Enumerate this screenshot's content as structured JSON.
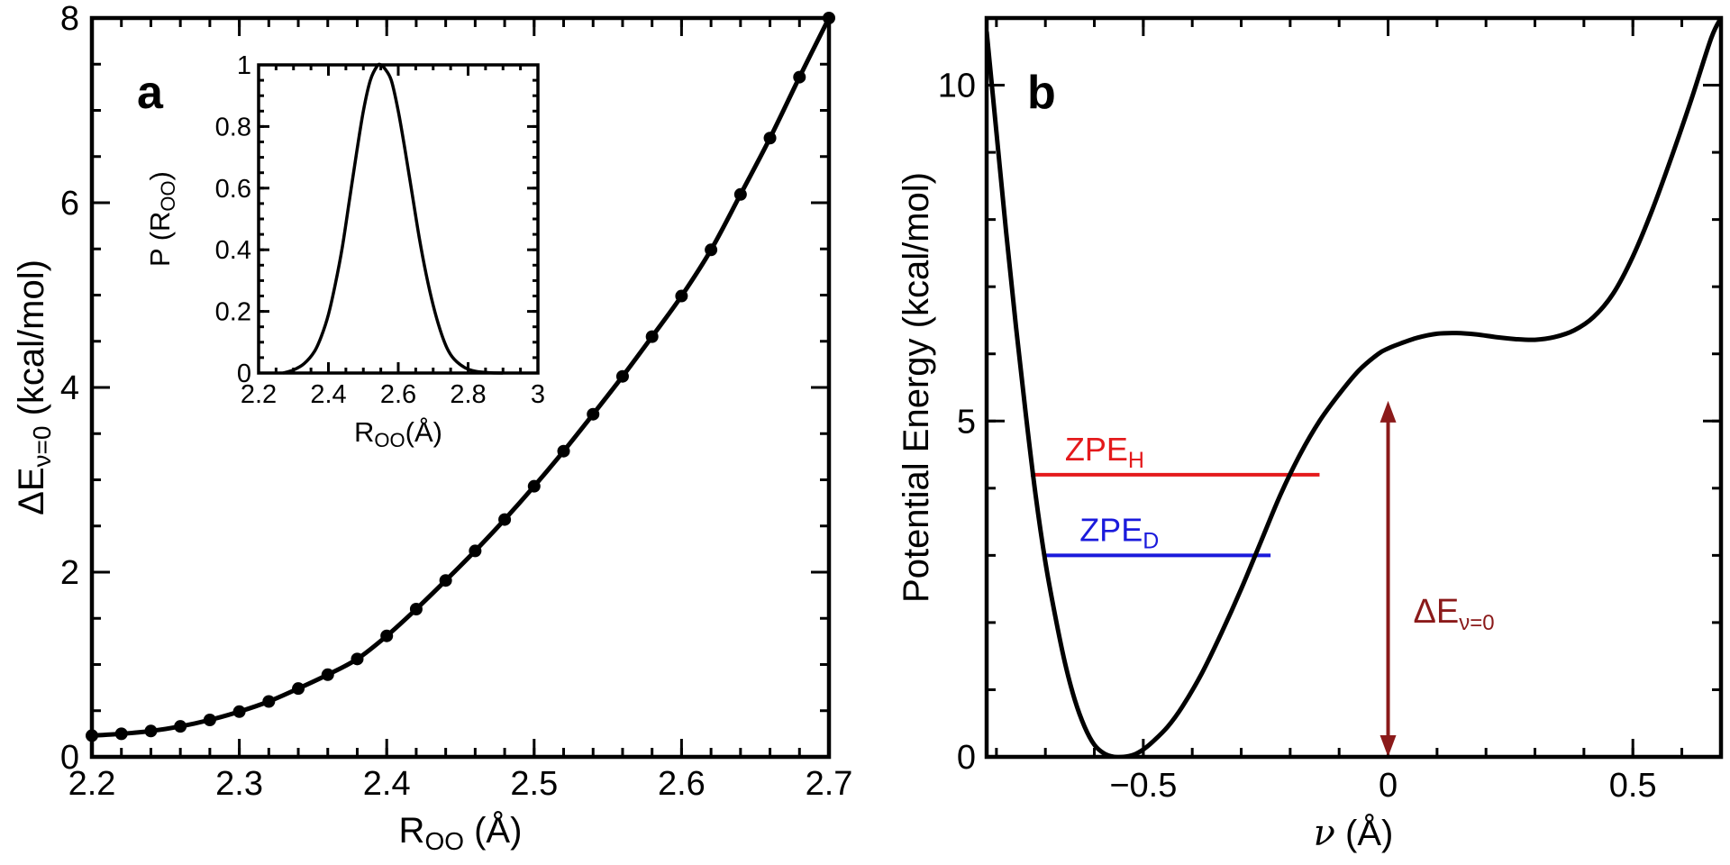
{
  "chart_data": [
    {
      "id": "a",
      "type": "line",
      "panel_label": "a",
      "xlabel": "R",
      "xlabel_sub": "OO",
      "xlabel_unit": " (Å)",
      "ylabel": "ΔE",
      "ylabel_sub": "ν=0",
      "ylabel_unit": " (kcal/mol)",
      "xlim": [
        2.2,
        2.7
      ],
      "ylim": [
        0,
        8
      ],
      "xticks": [
        2.2,
        2.3,
        2.4,
        2.5,
        2.6,
        2.7
      ],
      "xticklabels": [
        "2.2",
        "2.3",
        "2.4",
        "2.5",
        "2.6",
        "2.7"
      ],
      "yticks": [
        0,
        2,
        4,
        6,
        8
      ],
      "yticklabels": [
        "0",
        "2",
        "4",
        "6",
        "8"
      ],
      "series": [
        {
          "name": "ΔE_ν=0 vs R_OO",
          "markers": true,
          "x": [
            2.2,
            2.22,
            2.24,
            2.26,
            2.28,
            2.3,
            2.32,
            2.34,
            2.36,
            2.38,
            2.4,
            2.42,
            2.44,
            2.46,
            2.48,
            2.5,
            2.52,
            2.54,
            2.56,
            2.58,
            2.6,
            2.62,
            2.64,
            2.66,
            2.68,
            2.7
          ],
          "y": [
            0.23,
            0.25,
            0.28,
            0.33,
            0.4,
            0.49,
            0.6,
            0.74,
            0.89,
            1.06,
            1.31,
            1.6,
            1.91,
            2.23,
            2.57,
            2.93,
            3.31,
            3.71,
            4.12,
            4.55,
            4.99,
            5.49,
            6.09,
            6.7,
            7.36,
            8.0
          ]
        }
      ],
      "inset": {
        "type": "line",
        "xlabel": "R",
        "xlabel_sub": "OO",
        "xlabel_unit": "(Å)",
        "ylabel": "P (R",
        "ylabel_sub": "OO",
        "ylabel_unit": ")",
        "xlim": [
          2.2,
          3.0
        ],
        "ylim": [
          0,
          1
        ],
        "xticks": [
          2.2,
          2.4,
          2.6,
          2.8,
          3.0
        ],
        "xticklabels": [
          "2.2",
          "2.4",
          "2.6",
          "2.8",
          "3"
        ],
        "yticks": [
          0,
          0.2,
          0.4,
          0.6,
          0.8,
          1.0
        ],
        "yticklabels": [
          "0",
          "0.2",
          "0.4",
          "0.6",
          "0.8",
          "1"
        ],
        "series": [
          {
            "name": "P(R_OO)",
            "x": [
              2.27,
              2.3,
              2.33,
              2.36,
              2.38,
              2.4,
              2.42,
              2.44,
              2.46,
              2.48,
              2.5,
              2.52,
              2.54,
              2.55,
              2.56,
              2.58,
              2.6,
              2.62,
              2.64,
              2.66,
              2.68,
              2.7,
              2.72,
              2.74,
              2.76,
              2.79,
              2.82,
              2.86,
              2.9
            ],
            "y": [
              0.0,
              0.01,
              0.03,
              0.07,
              0.12,
              0.19,
              0.29,
              0.41,
              0.56,
              0.71,
              0.85,
              0.95,
              0.997,
              1.0,
              0.99,
              0.95,
              0.85,
              0.72,
              0.58,
              0.44,
              0.32,
              0.22,
              0.14,
              0.08,
              0.045,
              0.018,
              0.006,
              0.001,
              0.0
            ]
          }
        ]
      }
    },
    {
      "id": "b",
      "type": "line",
      "panel_label": "b",
      "xlabel": "ν",
      "xlabel_unit": " (Å)",
      "ylabel": "Potential Energy (kcal/mol)",
      "xlim": [
        -0.82,
        0.68
      ],
      "ylim": [
        0,
        11
      ],
      "xticks": [
        -0.5,
        0,
        0.5
      ],
      "xticklabels": [
        "−0.5",
        "0",
        "0.5"
      ],
      "yticks": [
        0,
        5,
        10
      ],
      "yticklabels": [
        "0",
        "5",
        "10"
      ],
      "series": [
        {
          "name": "Potential energy curve",
          "x": [
            -0.82,
            -0.8,
            -0.78,
            -0.76,
            -0.74,
            -0.72,
            -0.7,
            -0.68,
            -0.66,
            -0.64,
            -0.62,
            -0.6,
            -0.58,
            -0.56,
            -0.54,
            -0.52,
            -0.5,
            -0.48,
            -0.45,
            -0.42,
            -0.38,
            -0.34,
            -0.3,
            -0.26,
            -0.22,
            -0.18,
            -0.14,
            -0.1,
            -0.06,
            -0.02,
            0.0,
            0.02,
            0.06,
            0.1,
            0.14,
            0.18,
            0.22,
            0.26,
            0.3,
            0.34,
            0.38,
            0.42,
            0.46,
            0.5,
            0.54,
            0.58,
            0.62,
            0.66,
            0.68
          ],
          "y": [
            10.8,
            9.3,
            7.8,
            6.4,
            5.1,
            3.9,
            2.9,
            2.1,
            1.4,
            0.85,
            0.45,
            0.18,
            0.05,
            0.0,
            0.0,
            0.03,
            0.11,
            0.23,
            0.45,
            0.75,
            1.25,
            1.85,
            2.5,
            3.2,
            3.9,
            4.5,
            5.0,
            5.4,
            5.75,
            6.0,
            6.08,
            6.14,
            6.24,
            6.3,
            6.31,
            6.29,
            6.25,
            6.22,
            6.21,
            6.25,
            6.35,
            6.55,
            6.9,
            7.45,
            8.15,
            8.95,
            9.8,
            10.7,
            11.0
          ]
        }
      ],
      "levels": [
        {
          "label": "ZPE",
          "label_sub": "H",
          "energy": 4.2,
          "x_start": -0.73,
          "x_end": -0.14,
          "color": "#e41a1c"
        },
        {
          "label": "ZPE",
          "label_sub": "D",
          "energy": 3.0,
          "x_start": -0.7,
          "x_end": -0.24,
          "color": "#1a1adc"
        }
      ],
      "arrow": {
        "label": "ΔE",
        "label_sub": "ν=0",
        "x": 0.0,
        "y_from": 0,
        "y_to": 5.3,
        "color": "#8b1a1a"
      }
    }
  ]
}
